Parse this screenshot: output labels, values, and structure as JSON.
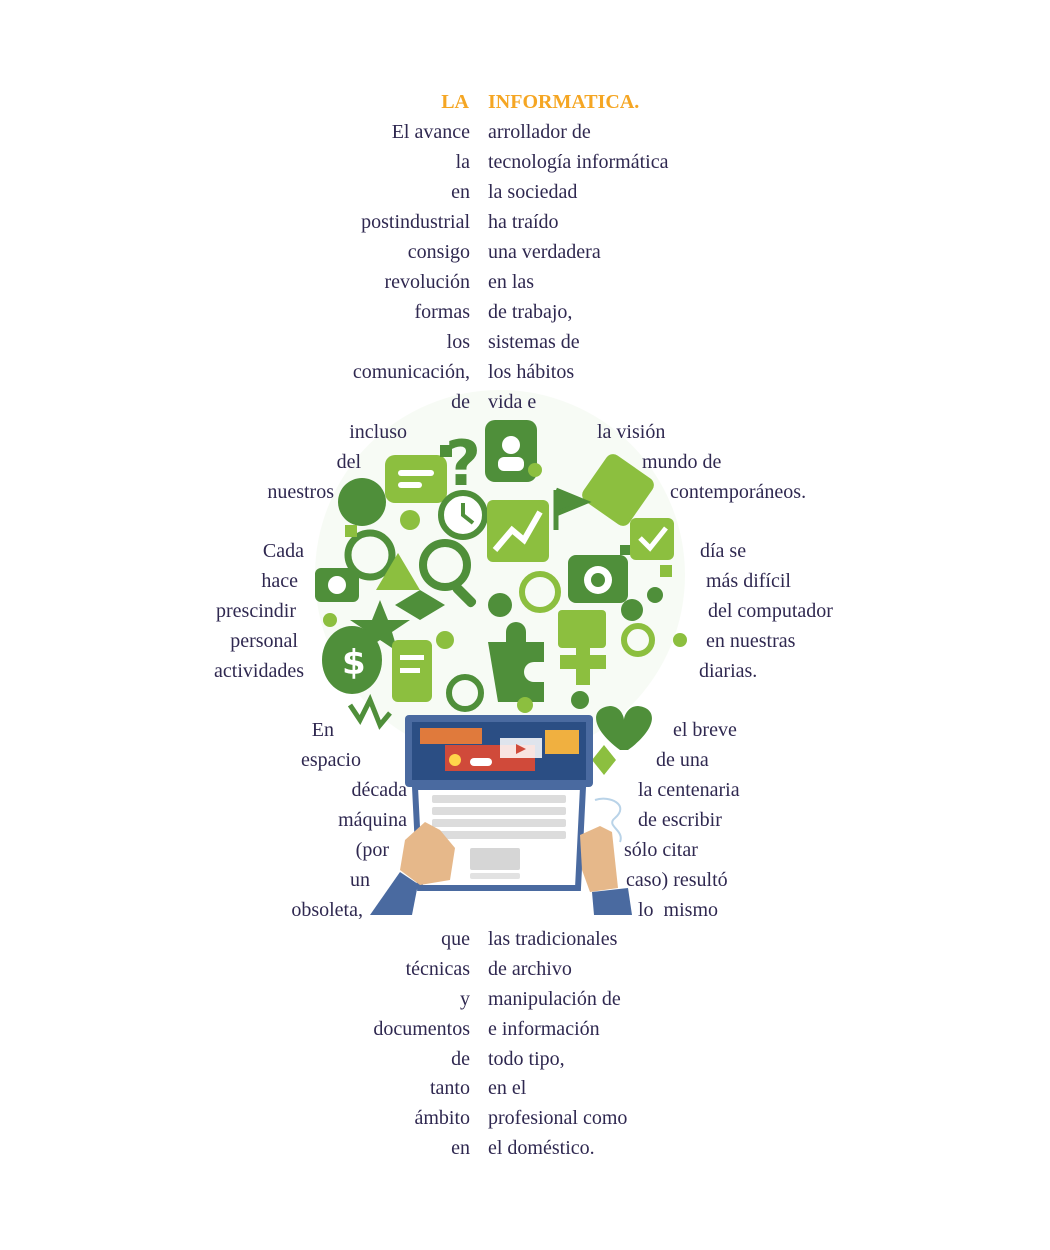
{
  "title": {
    "left": "LA",
    "right": "INFORMATICA."
  },
  "top_block": {
    "left": [
      "El avance",
      "la",
      "en",
      "postindustrial",
      "consigo",
      "revolución",
      "formas",
      "los",
      "comunicación,",
      "de"
    ],
    "right": [
      "arrollador de",
      "tecnología informática",
      "la sociedad",
      "ha traído",
      "una verdadera",
      "en las",
      "de trabajo,",
      "sistemas de",
      "los hábitos",
      "vida e"
    ]
  },
  "globe_block_1": {
    "left": [
      "incluso",
      "del",
      "nuestros"
    ],
    "right": [
      "la visión",
      "mundo de",
      "contemporáneos."
    ]
  },
  "globe_block_2": {
    "left": [
      "Cada",
      "hace",
      "prescindir",
      "personal",
      "actividades"
    ],
    "right": [
      "día se",
      "más difícil",
      "del computador",
      "en nuestras",
      "diarias."
    ]
  },
  "laptop_block": {
    "left": [
      "En",
      "espacio",
      "década",
      "máquina",
      "(por",
      "un",
      "obsoleta,"
    ],
    "right": [
      "el breve",
      "de una",
      "la centenaria",
      "de escribir",
      "sólo citar",
      "caso) resultó",
      "lo  mismo"
    ]
  },
  "bottom_block": {
    "left": [
      "que",
      "técnicas",
      "y",
      "documentos",
      "de",
      "tanto",
      "ámbito",
      "en"
    ],
    "right": [
      "las tradicionales",
      "de archivo",
      "manipulación de",
      "e información",
      "todo tipo,",
      "en el",
      "profesional como",
      "el doméstico."
    ]
  },
  "colors": {
    "title": "#f5a623",
    "text": "#2f2850",
    "green_dark": "#4f8f3a",
    "green_light": "#8cbf3f",
    "laptop": "#4a6aa0"
  }
}
